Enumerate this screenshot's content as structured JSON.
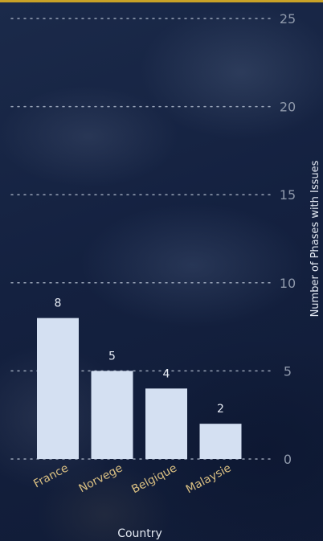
{
  "accent_color": "#c9a227",
  "chart_data": {
    "type": "bar",
    "categories": [
      "France",
      "Norvege",
      "Belgique",
      "Malaysie"
    ],
    "values": [
      8,
      5,
      4,
      2
    ],
    "xlabel": "Country",
    "ylabel": "Number of Phases with Issues",
    "ylim": [
      0,
      25
    ],
    "yticks": [
      0,
      5,
      10,
      15,
      20,
      25
    ],
    "y_axis_position": "right",
    "grid": true,
    "data_labels": true,
    "bar_color": "#d4e0f2"
  }
}
